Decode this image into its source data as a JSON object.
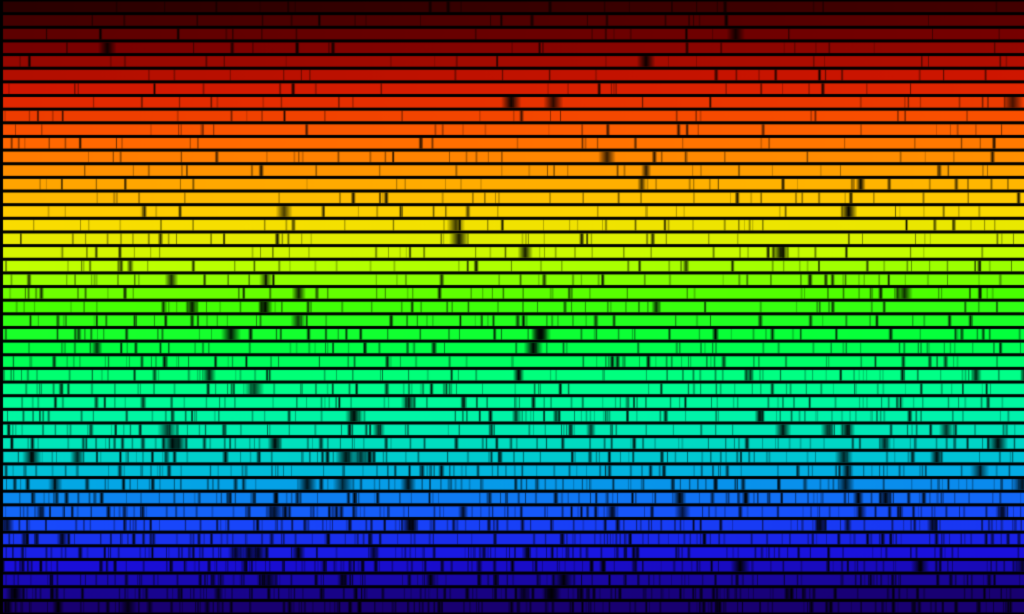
{
  "image": {
    "subject": "solar-spectrum",
    "rows": 45,
    "color_stops": [
      "#2a0000",
      "#7a0000",
      "#d81800",
      "#ff5a00",
      "#ff9c00",
      "#ffd800",
      "#c8ff00",
      "#48ff00",
      "#00ff40",
      "#00ff90",
      "#00f0b0",
      "#00b8e0",
      "#1850ff",
      "#1a10e0",
      "#180070"
    ],
    "line_color": "#000000"
  }
}
